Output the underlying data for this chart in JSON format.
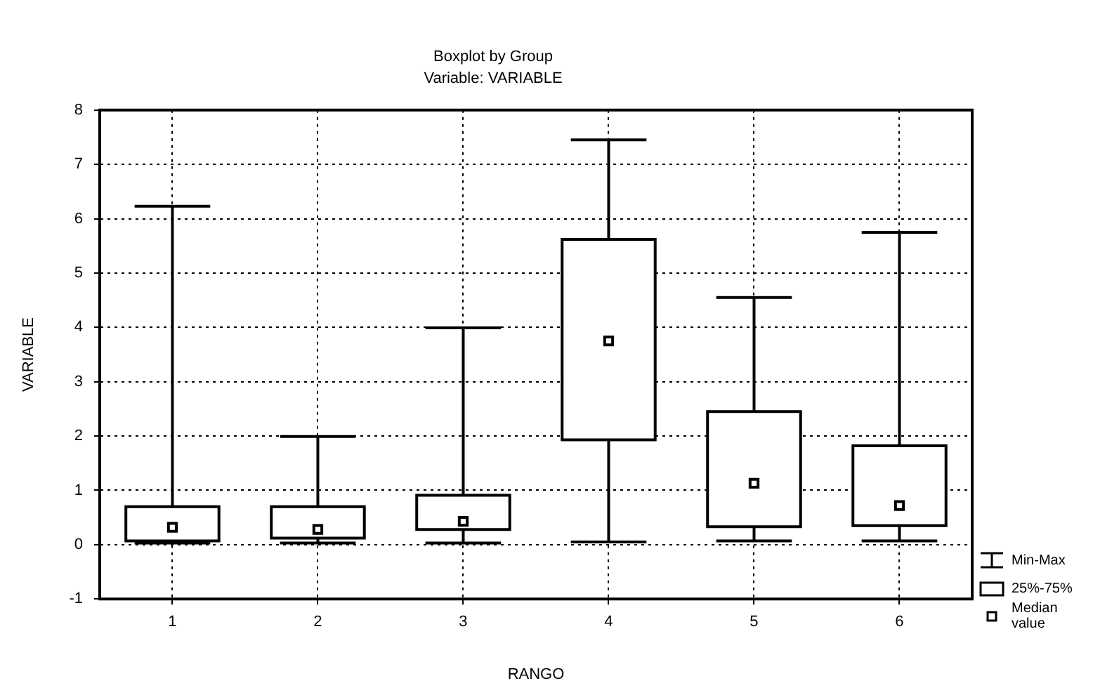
{
  "chart_data": {
    "type": "box",
    "title": "Boxplot by Group",
    "subtitle": "Variable: VARIABLE",
    "xlabel": "RANGO",
    "ylabel": "VARIABLE",
    "categories": [
      "1",
      "2",
      "3",
      "4",
      "5",
      "6"
    ],
    "boxes": [
      {
        "low": 0.03,
        "q1": 0.07,
        "median": 0.32,
        "q3": 0.7,
        "high": 6.23
      },
      {
        "low": 0.03,
        "q1": 0.12,
        "median": 0.28,
        "q3": 0.7,
        "high": 1.99
      },
      {
        "low": 0.03,
        "q1": 0.28,
        "median": 0.43,
        "q3": 0.91,
        "high": 3.99
      },
      {
        "low": 0.05,
        "q1": 1.93,
        "median": 3.75,
        "q3": 5.62,
        "high": 7.45
      },
      {
        "low": 0.07,
        "q1": 0.33,
        "median": 1.13,
        "q3": 2.45,
        "high": 4.55
      },
      {
        "low": 0.07,
        "q1": 0.35,
        "median": 0.72,
        "q3": 1.82,
        "high": 5.75
      }
    ],
    "color": "#ffffff",
    "marker": "square",
    "grid": true,
    "ylim": [
      -1,
      8
    ],
    "yticks": [
      -1,
      0,
      1,
      2,
      3,
      4,
      5,
      6,
      7,
      8
    ],
    "annotations": [
      "Min-Max",
      "25%-75%",
      "Median value"
    ]
  }
}
